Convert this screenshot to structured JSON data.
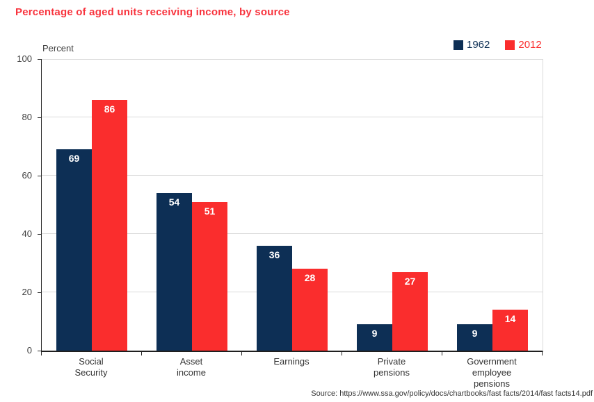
{
  "title": "Percentage of aged units receiving income, by source",
  "axis_note": "Percent",
  "legend": [
    {
      "label": "1962",
      "color": "#0d2f55"
    },
    {
      "label": "2012",
      "color": "#fa2d2d"
    }
  ],
  "source": "Source: https://www.ssa.gov/policy/docs/chartbooks/fast facts/2014/fast facts14.pdf",
  "colors": {
    "title": "#f8333d",
    "series_1962": "#0d2f55",
    "series_2012": "#fa2d2d",
    "gridline": "#d9d9d9",
    "axis": "#262626",
    "tick_text": "#404040",
    "bar_value_text": "#ffffff",
    "background": "#ffffff"
  },
  "chart_data": {
    "type": "bar",
    "title": "Percentage of aged units receiving income, by source",
    "ylabel": "Percent",
    "xlabel": "",
    "ylim": [
      0,
      100
    ],
    "yticks": [
      0,
      20,
      40,
      60,
      80,
      100
    ],
    "grid": true,
    "legend_position": "top-right",
    "categories": [
      "Social Security",
      "Asset income",
      "Earnings",
      "Private pensions",
      "Government employee pensions"
    ],
    "category_lines": [
      [
        "Social",
        "Security"
      ],
      [
        "Asset",
        "income"
      ],
      [
        "Earnings"
      ],
      [
        "Private",
        "pensions"
      ],
      [
        "Government",
        "employee",
        "pensions"
      ]
    ],
    "series": [
      {
        "name": "1962",
        "color": "#0d2f55",
        "values": [
          69,
          54,
          36,
          9,
          9
        ]
      },
      {
        "name": "2012",
        "color": "#fa2d2d",
        "values": [
          86,
          51,
          28,
          27,
          14
        ]
      }
    ]
  }
}
